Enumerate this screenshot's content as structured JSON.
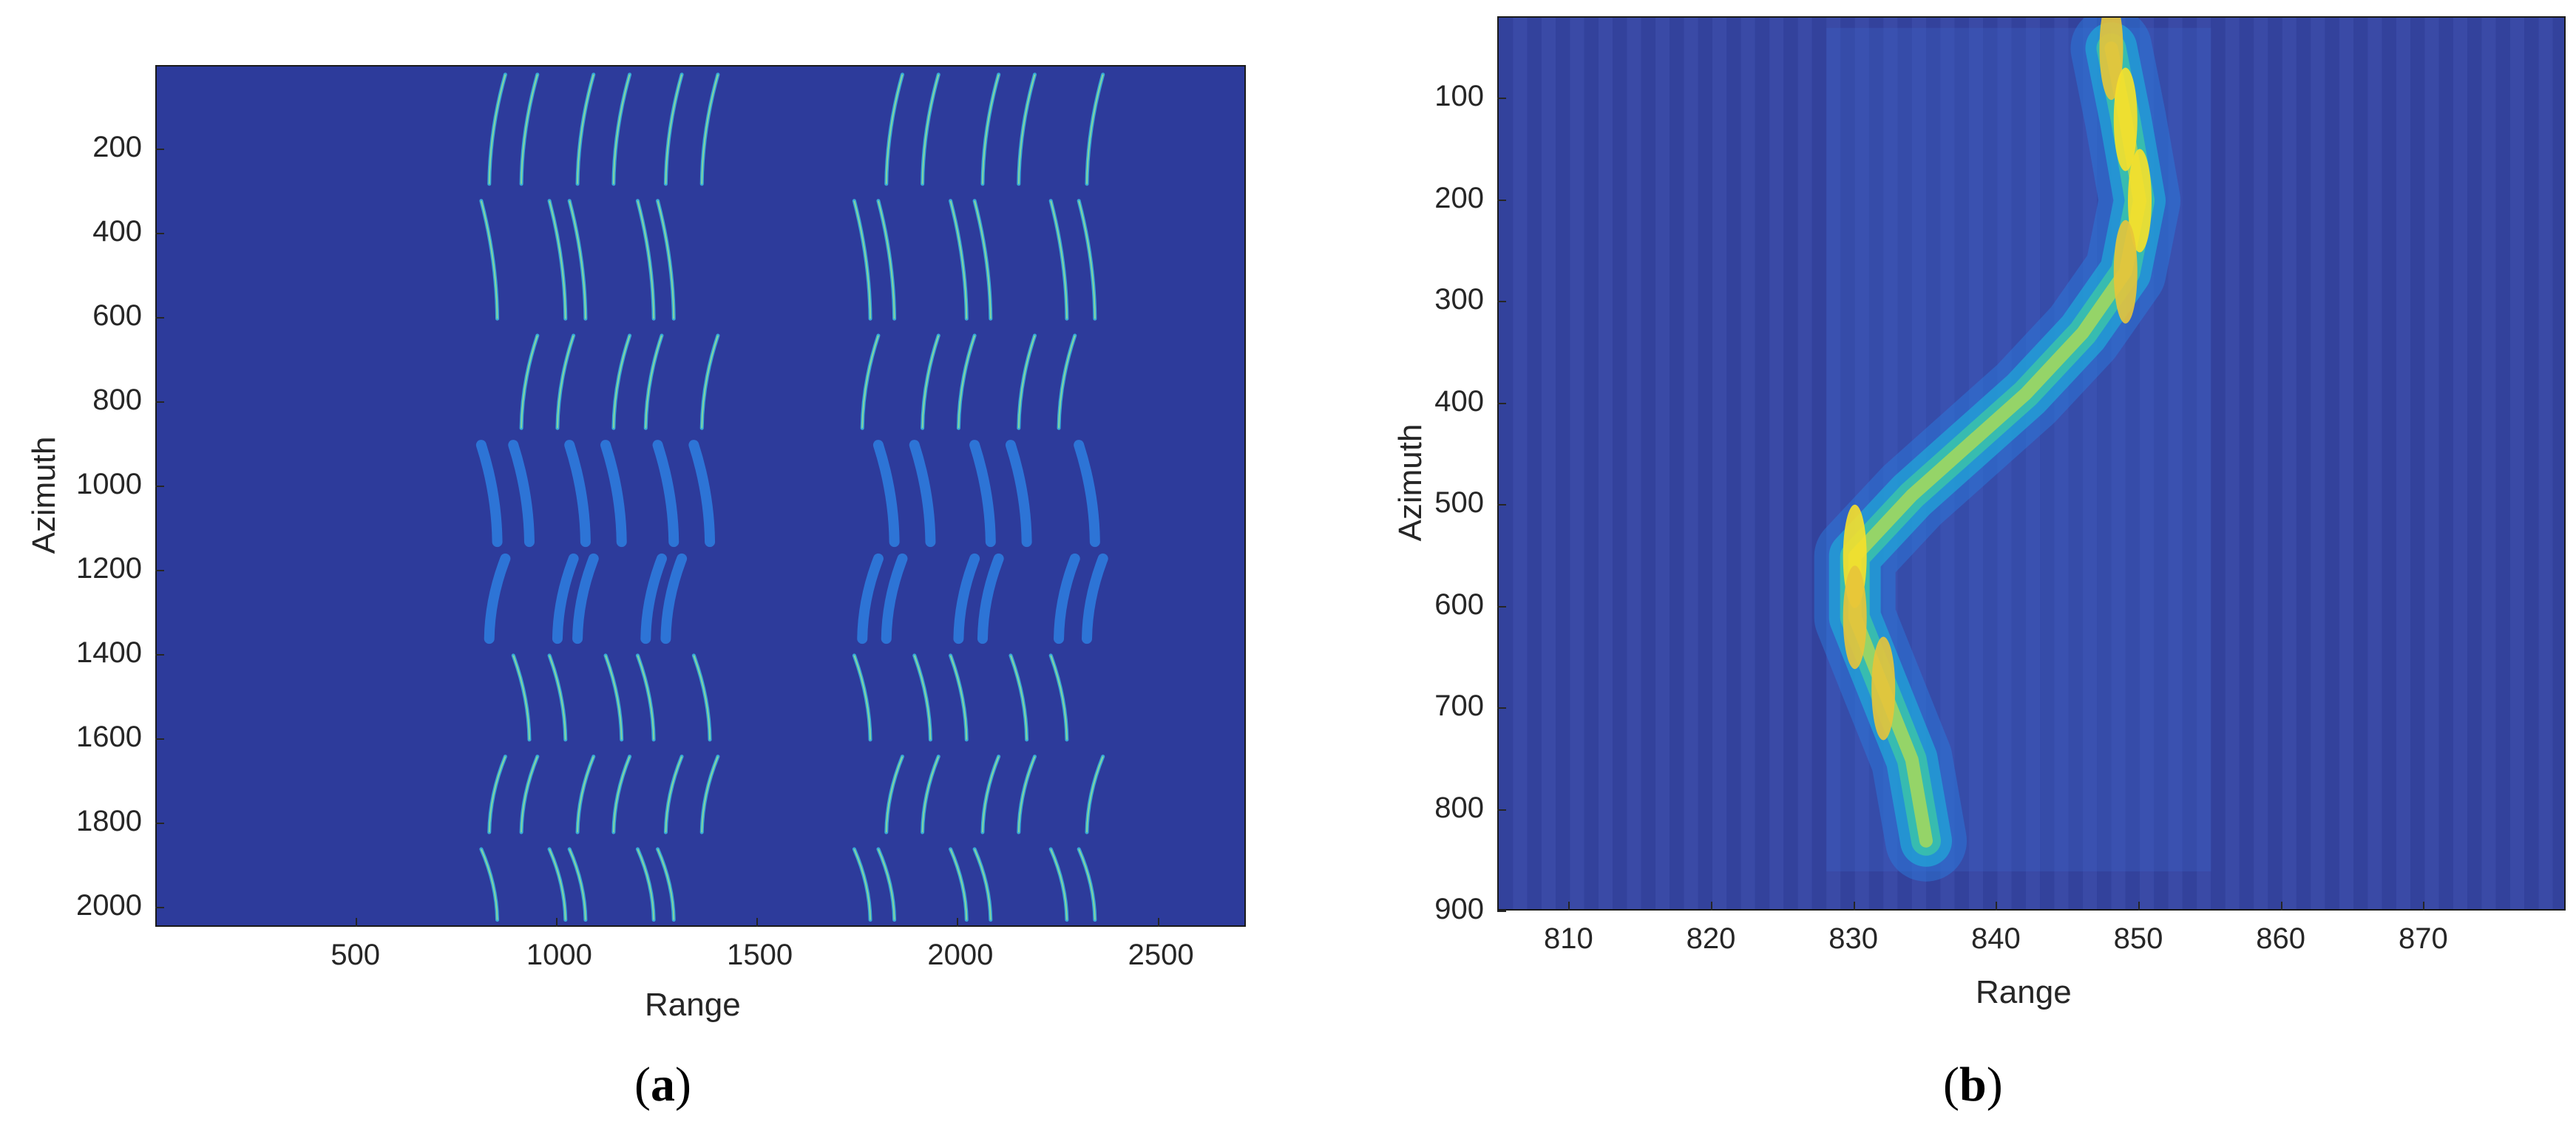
{
  "chart_data": [
    {
      "type": "heatmap",
      "panel_label": "a",
      "xlabel": "Range",
      "ylabel": "Azimuth",
      "xlim": [
        1,
        2720
      ],
      "ylim": [
        2048,
        1
      ],
      "xticks": [
        500,
        1000,
        1500,
        2000,
        2500
      ],
      "yticks": [
        200,
        400,
        600,
        800,
        1000,
        1200,
        1400,
        1600,
        1800,
        2000
      ],
      "colormap": "parula",
      "background_color": "#2d3b9b",
      "trajectories": {
        "cluster_1_columns": [
          850,
          920,
          1000,
          1070,
          1150,
          1220,
          1290,
          1370
        ],
        "cluster_2_columns": [
          1760,
          1840,
          1920,
          2000,
          2080,
          2160,
          2250,
          2340
        ],
        "azimuth_segments": [
          [
            0,
            300
          ],
          [
            300,
            620
          ],
          [
            620,
            880
          ],
          [
            880,
            1150
          ],
          [
            1150,
            1380
          ],
          [
            1380,
            1620
          ],
          [
            1620,
            1840
          ],
          [
            1840,
            2048
          ]
        ]
      }
    },
    {
      "type": "heatmap",
      "panel_label": "b",
      "xlabel": "Range",
      "ylabel": "Azimuth",
      "xlim": [
        805,
        880
      ],
      "ylim": [
        900,
        20
      ],
      "xticks": [
        810,
        820,
        830,
        840,
        850,
        860,
        870
      ],
      "yticks": [
        100,
        200,
        300,
        400,
        500,
        600,
        700,
        800,
        900
      ],
      "colormap": "parula",
      "background_color": "#35459f",
      "trajectory": {
        "range": [
          848,
          849,
          850,
          849,
          846,
          842,
          838,
          834,
          830,
          830,
          832,
          834,
          835
        ],
        "azimuth": [
          50,
          120,
          200,
          270,
          330,
          390,
          440,
          490,
          550,
          610,
          680,
          750,
          830
        ],
        "peak_intensity": [
          0.85,
          0.95,
          0.92,
          0.85,
          0.6,
          0.45,
          0.5,
          0.6,
          0.95,
          0.9,
          0.8,
          0.7,
          0.6
        ]
      }
    }
  ],
  "captions": {
    "a": "(a)",
    "b": "(b)"
  }
}
